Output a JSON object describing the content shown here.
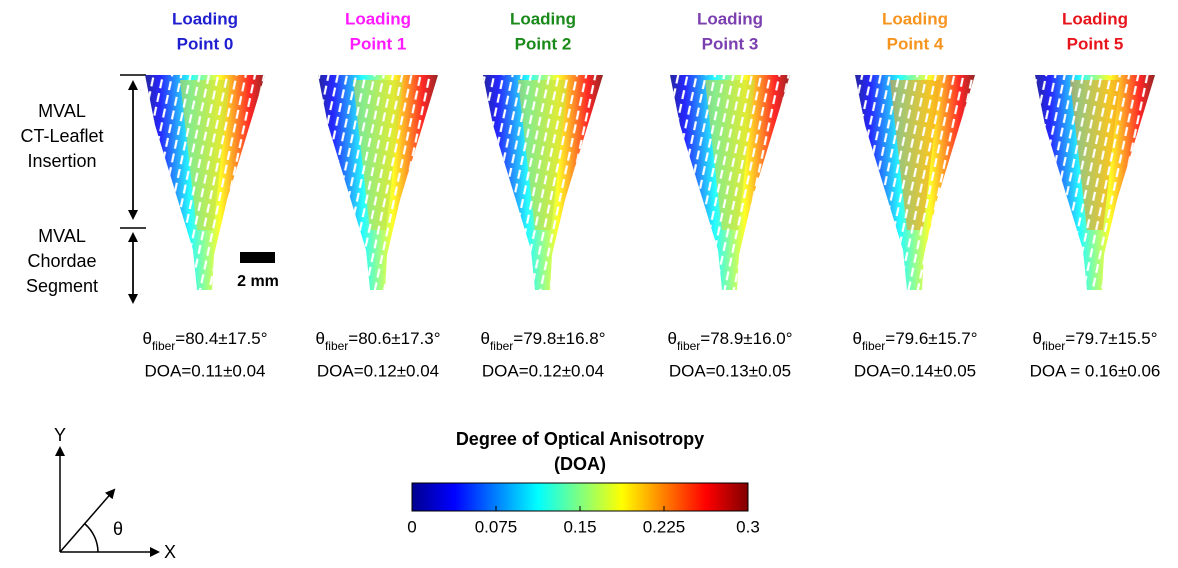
{
  "panels": [
    {
      "title": [
        "Loading",
        "Point 0"
      ],
      "color": "#1f1fd0",
      "theta": {
        "symbol": "θ",
        "subscript": "fiber",
        "text": "=80.4±17.5°"
      },
      "doa": "DOA=0.11±0.04"
    },
    {
      "title": [
        "Loading",
        "Point 1"
      ],
      "color": "#ff1aff",
      "theta": {
        "symbol": "θ",
        "subscript": "fiber",
        "text": "=80.6±17.3°"
      },
      "doa": "DOA=0.12±0.04"
    },
    {
      "title": [
        "Loading",
        "Point 2"
      ],
      "color": "#1a8a1a",
      "theta": {
        "symbol": "θ",
        "subscript": "fiber",
        "text": "=79.8±16.8°"
      },
      "doa": "DOA=0.12±0.04"
    },
    {
      "title": [
        "Loading",
        "Point 3"
      ],
      "color": "#7b3fb0",
      "theta": {
        "symbol": "θ",
        "subscript": "fiber",
        "text": "=78.9±16.0°"
      },
      "doa": "DOA=0.13±0.05"
    },
    {
      "title": [
        "Loading",
        "Point 4"
      ],
      "color": "#f7941d",
      "theta": {
        "symbol": "θ",
        "subscript": "fiber",
        "text": "=79.6±15.7°"
      },
      "doa": "DOA=0.14±0.05"
    },
    {
      "title": [
        "Loading",
        "Point 5"
      ],
      "color": "#e8141c",
      "theta": {
        "symbol": "θ",
        "subscript": "fiber",
        "text": "=79.7±15.5°"
      },
      "doa": "DOA = 0.16±0.06"
    }
  ],
  "region_labels": {
    "insertion": [
      "MVAL",
      "CT-Leaflet",
      "Insertion"
    ],
    "chordae": [
      "MVAL",
      "Chordae",
      "Segment"
    ]
  },
  "scale_bar": "2 mm",
  "axes": {
    "y": "Y",
    "x": "X",
    "angle": "θ"
  },
  "colorbar": {
    "title": [
      "Degree of Optical Anisotropy",
      "(DOA)"
    ],
    "lim": [
      0,
      0.3
    ],
    "ticks": [
      0,
      0.075,
      0.15,
      0.225,
      0.3
    ]
  }
}
